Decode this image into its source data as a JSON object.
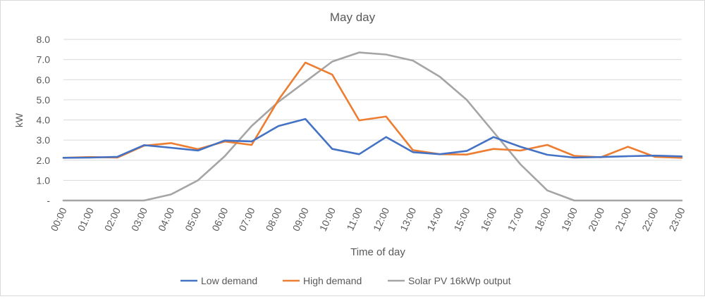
{
  "chart_data": {
    "type": "line",
    "title": "May day",
    "xlabel": "Time of day",
    "ylabel": "kW",
    "ylim": [
      0,
      8
    ],
    "yticks": [
      0,
      1,
      2,
      3,
      4,
      5,
      6,
      7,
      8
    ],
    "ytick_labels": [
      "-",
      "1.0",
      "2.0",
      "3.0",
      "4.0",
      "5.0",
      "6.0",
      "7.0",
      "8.0"
    ],
    "grid": true,
    "legend_position": "bottom",
    "categories": [
      "00:00",
      "01:00",
      "02:00",
      "03:00",
      "04:00",
      "05:00",
      "06:00",
      "07:00",
      "08:00",
      "09:00",
      "10:00",
      "11:00",
      "12:00",
      "13:00",
      "14:00",
      "15:00",
      "16:00",
      "17:00",
      "18:00",
      "19:00",
      "20:00",
      "21:00",
      "22:00",
      "23:00"
    ],
    "series": [
      {
        "name": "Low demand",
        "color": "#4472c4",
        "values": [
          2.12,
          2.13,
          2.17,
          2.75,
          2.62,
          2.48,
          2.98,
          2.93,
          3.7,
          4.05,
          2.56,
          2.3,
          3.15,
          2.4,
          2.3,
          2.46,
          3.15,
          2.67,
          2.27,
          2.13,
          2.16,
          2.2,
          2.23,
          2.19
        ]
      },
      {
        "name": "High demand",
        "color": "#ed7d31",
        "values": [
          2.12,
          2.16,
          2.13,
          2.72,
          2.85,
          2.55,
          2.93,
          2.76,
          5.0,
          6.85,
          6.25,
          3.98,
          4.17,
          2.5,
          2.3,
          2.28,
          2.56,
          2.48,
          2.76,
          2.22,
          2.15,
          2.67,
          2.17,
          2.12
        ]
      },
      {
        "name": "Solar PV 16kWp output",
        "color": "#a5a5a5",
        "values": [
          0,
          0,
          0,
          0,
          0.3,
          1.0,
          2.2,
          3.7,
          4.9,
          5.9,
          6.9,
          7.35,
          7.25,
          6.95,
          6.15,
          5.0,
          3.4,
          1.8,
          0.5,
          0,
          0,
          0,
          0,
          0
        ]
      }
    ]
  }
}
